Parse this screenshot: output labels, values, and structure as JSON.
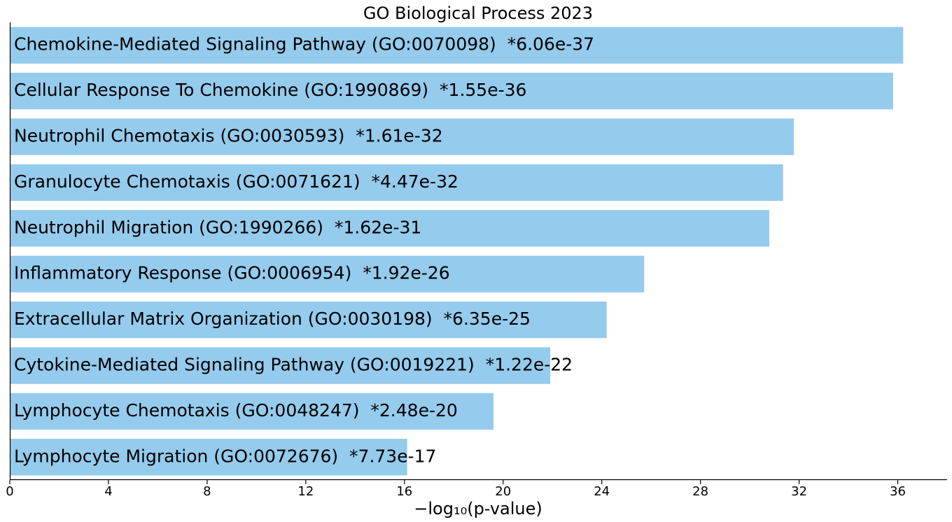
{
  "chart_data": {
    "type": "bar",
    "orientation": "horizontal",
    "title": "GO Biological Process 2023",
    "xlabel": "−log₁₀(p-value)",
    "ylabel": "",
    "xlim": [
      0,
      38
    ],
    "xticks": [
      0,
      4,
      8,
      12,
      16,
      20,
      24,
      28,
      32,
      36
    ],
    "grid": false,
    "bar_color": "#95cbed",
    "categories": [
      "Chemokine-Mediated Signaling Pathway (GO:0070098)",
      "Cellular Response To Chemokine (GO:1990869)",
      "Neutrophil Chemotaxis (GO:0030593)",
      "Granulocyte Chemotaxis (GO:0071621)",
      "Neutrophil Migration (GO:1990266)",
      "Inflammatory Response (GO:0006954)",
      "Extracellular Matrix Organization (GO:0030198)",
      "Cytokine-Mediated Signaling Pathway (GO:0019221)",
      "Lymphocyte Chemotaxis (GO:0048247)",
      "Lymphocyte Migration (GO:0072676)"
    ],
    "pvalue_labels": [
      "*6.06e-37",
      "*1.55e-36",
      "*1.61e-32",
      "*4.47e-32",
      "*1.62e-31",
      "*1.92e-26",
      "*6.35e-25",
      "*1.22e-22",
      "*2.48e-20",
      "*7.73e-17"
    ],
    "values": [
      36.22,
      35.81,
      31.79,
      31.35,
      30.79,
      25.72,
      24.2,
      21.91,
      19.61,
      16.11
    ]
  }
}
